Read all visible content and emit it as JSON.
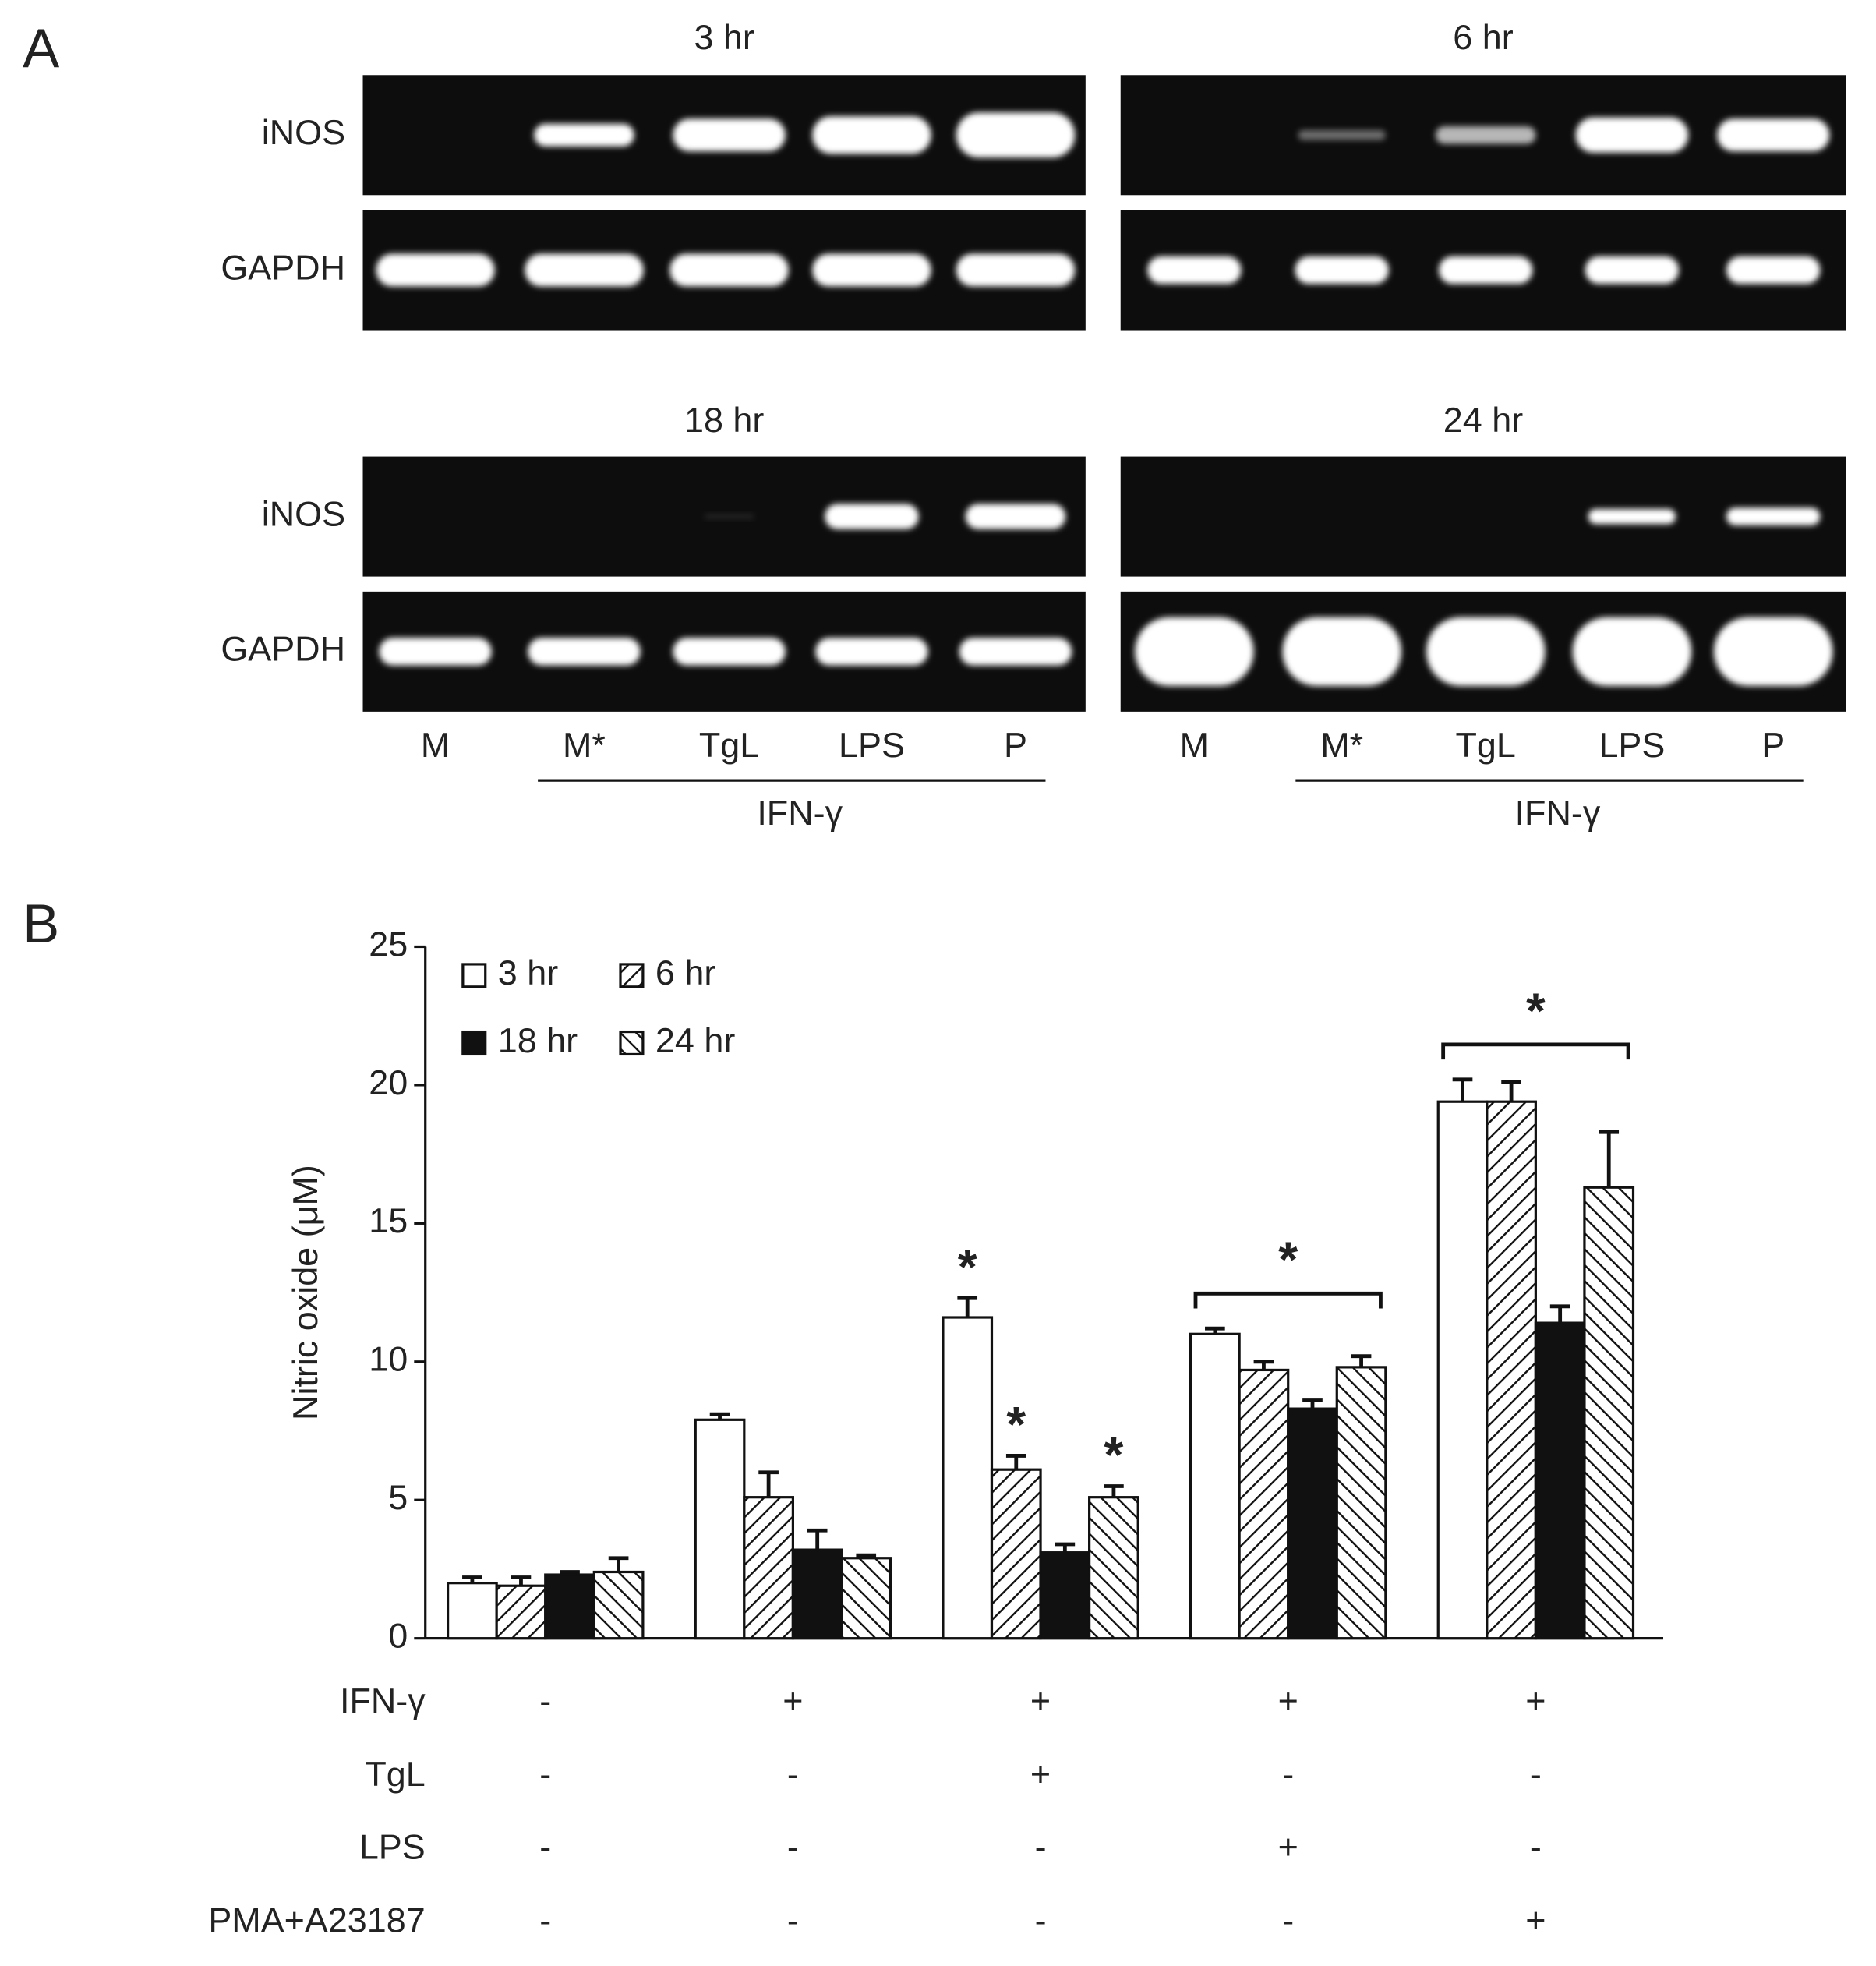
{
  "panel_a": {
    "label": "A",
    "panels": [
      {
        "title": "3 hr"
      },
      {
        "title": "6 hr"
      },
      {
        "title": "18 hr"
      },
      {
        "title": "24 hr"
      }
    ],
    "row_labels": [
      "iNOS",
      "GAPDH"
    ],
    "lanes": [
      "M",
      "M*",
      "TgL",
      "LPS",
      "P"
    ],
    "group_label": "IFN-γ"
  },
  "chart_data": {
    "type": "bar",
    "panel_label": "B",
    "y_label": "Nitric oxide (μM)",
    "categories": [
      null,
      null,
      null,
      null,
      null
    ],
    "ylim": [
      0,
      25
    ],
    "yticks": [
      0,
      5,
      10,
      15,
      20,
      25
    ],
    "series": [
      {
        "name": "3 hr",
        "color": "#ffffff",
        "pattern": "solid",
        "values": [
          2.0,
          7.9,
          11.6,
          11.0,
          19.4
        ],
        "errors": [
          0.2,
          0.2,
          0.7,
          0.2,
          0.8
        ],
        "significance": [
          null,
          null,
          "*",
          null,
          null
        ]
      },
      {
        "name": "6 hr",
        "color": "#ffffff",
        "pattern": "hatch-up",
        "values": [
          1.9,
          5.1,
          6.1,
          9.7,
          19.4
        ],
        "errors": [
          0.3,
          0.9,
          0.5,
          0.3,
          0.7
        ],
        "significance": [
          null,
          null,
          "*",
          null,
          null
        ]
      },
      {
        "name": "18 hr",
        "color": "#111111",
        "pattern": "solid",
        "values": [
          2.3,
          3.2,
          3.1,
          8.3,
          11.4
        ],
        "errors": [
          0.1,
          0.7,
          0.3,
          0.3,
          0.6
        ],
        "significance": [
          null,
          null,
          null,
          null,
          null
        ]
      },
      {
        "name": "24 hr",
        "color": "#ffffff",
        "pattern": "hatch-down",
        "values": [
          2.4,
          2.9,
          5.1,
          9.8,
          16.3
        ],
        "errors": [
          0.5,
          0.1,
          0.4,
          0.4,
          2.0
        ],
        "significance": [
          null,
          null,
          "*",
          null,
          null
        ]
      }
    ],
    "group_significance": [
      null,
      null,
      null,
      "*",
      "*"
    ],
    "conditions": [
      {
        "label": "IFN-γ",
        "signs": [
          "-",
          "+",
          "+",
          "+",
          "+"
        ]
      },
      {
        "label": "TgL",
        "signs": [
          "-",
          "-",
          "+",
          "-",
          "-"
        ]
      },
      {
        "label": "LPS",
        "signs": [
          "-",
          "-",
          "-",
          "+",
          "-"
        ]
      },
      {
        "label": "PMA+A23187",
        "signs": [
          "-",
          "-",
          "-",
          "-",
          "+"
        ]
      }
    ]
  }
}
